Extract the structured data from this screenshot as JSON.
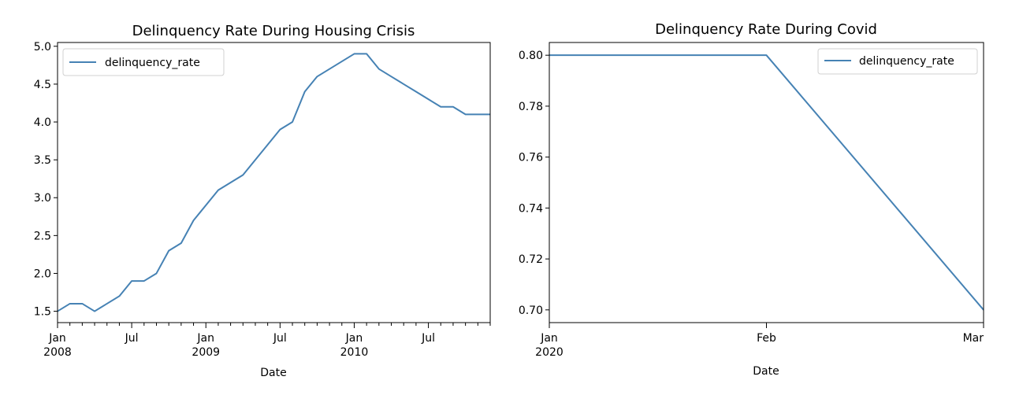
{
  "chart_data": [
    {
      "type": "line",
      "title": "Delinquency Rate During Housing Crisis",
      "xlabel": "Date",
      "ylabel": "",
      "x_ticks": [
        {
          "label": "Jan",
          "sublabel": "2008",
          "date": "2008-01"
        },
        {
          "label": "Jul",
          "sublabel": "",
          "date": "2008-07"
        },
        {
          "label": "Jan",
          "sublabel": "2009",
          "date": "2009-01"
        },
        {
          "label": "Jul",
          "sublabel": "",
          "date": "2009-07"
        },
        {
          "label": "Jan",
          "sublabel": "2010",
          "date": "2010-01"
        },
        {
          "label": "Jul",
          "sublabel": "",
          "date": "2010-07"
        }
      ],
      "y_ticks": [
        "1.5",
        "2.0",
        "2.5",
        "3.0",
        "3.5",
        "4.0",
        "4.5",
        "5.0"
      ],
      "xlim": [
        "2008-01",
        "2010-12"
      ],
      "ylim": [
        1.35,
        5.05
      ],
      "legend": {
        "position": "upper left",
        "entries": [
          "delinquency_rate"
        ]
      },
      "grid": false,
      "color": "#4682b4",
      "series": [
        {
          "name": "delinquency_rate",
          "x": [
            "2008-01",
            "2008-02",
            "2008-03",
            "2008-04",
            "2008-05",
            "2008-06",
            "2008-07",
            "2008-08",
            "2008-09",
            "2008-10",
            "2008-11",
            "2008-12",
            "2009-01",
            "2009-02",
            "2009-03",
            "2009-04",
            "2009-05",
            "2009-06",
            "2009-07",
            "2009-08",
            "2009-09",
            "2009-10",
            "2009-11",
            "2009-12",
            "2010-01",
            "2010-02",
            "2010-03",
            "2010-04",
            "2010-05",
            "2010-06",
            "2010-07",
            "2010-08",
            "2010-09",
            "2010-10",
            "2010-11",
            "2010-12"
          ],
          "y": [
            1.5,
            1.6,
            1.6,
            1.5,
            1.6,
            1.7,
            1.9,
            1.9,
            2.0,
            2.3,
            2.4,
            2.7,
            2.9,
            3.1,
            3.2,
            3.3,
            3.5,
            3.7,
            3.9,
            4.0,
            4.4,
            4.6,
            4.7,
            4.8,
            4.9,
            4.9,
            4.7,
            4.6,
            4.5,
            4.4,
            4.3,
            4.2,
            4.2,
            4.1,
            4.1,
            4.1
          ]
        }
      ]
    },
    {
      "type": "line",
      "title": "Delinquency Rate During Covid",
      "xlabel": "Date",
      "ylabel": "",
      "x_ticks": [
        {
          "label": "Jan",
          "sublabel": "2020",
          "date": "2020-01"
        },
        {
          "label": "Feb",
          "sublabel": "",
          "date": "2020-02"
        },
        {
          "label": "Mar",
          "sublabel": "",
          "date": "2020-03"
        }
      ],
      "y_ticks": [
        "0.70",
        "0.72",
        "0.74",
        "0.76",
        "0.78",
        "0.80"
      ],
      "xlim": [
        "2020-01",
        "2020-03"
      ],
      "ylim": [
        0.695,
        0.805
      ],
      "legend": {
        "position": "upper right",
        "entries": [
          "delinquency_rate"
        ]
      },
      "grid": false,
      "color": "#4682b4",
      "series": [
        {
          "name": "delinquency_rate",
          "x": [
            "2020-01",
            "2020-02",
            "2020-03"
          ],
          "y": [
            0.8,
            0.8,
            0.7
          ]
        }
      ]
    }
  ]
}
